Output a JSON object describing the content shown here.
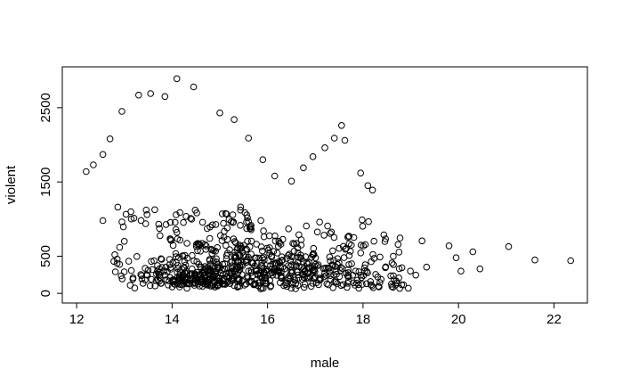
{
  "chart_data": {
    "type": "scatter",
    "title": "",
    "xlabel": "male",
    "ylabel": "violent",
    "xlim": [
      11.7,
      22.7
    ],
    "ylim": [
      -130,
      3050
    ],
    "x_ticks": [
      12,
      14,
      16,
      18,
      20,
      22
    ],
    "y_ticks": [
      0,
      500,
      1500,
      2500
    ],
    "grid": false,
    "legend": false,
    "marker": "open-circle",
    "marker_color": "#000000",
    "background_color": "#ffffff",
    "seed": 20,
    "explicit_points": [
      [
        12.2,
        1640
      ],
      [
        12.35,
        1730
      ],
      [
        12.55,
        1870
      ],
      [
        12.7,
        2080
      ],
      [
        12.95,
        2450
      ],
      [
        13.3,
        2670
      ],
      [
        13.55,
        2690
      ],
      [
        13.85,
        2650
      ],
      [
        14.1,
        2890
      ],
      [
        14.45,
        2780
      ],
      [
        15.0,
        2430
      ],
      [
        15.3,
        2340
      ],
      [
        15.6,
        2090
      ],
      [
        15.9,
        1800
      ],
      [
        16.15,
        1580
      ],
      [
        16.5,
        1510
      ],
      [
        16.75,
        1690
      ],
      [
        16.95,
        1840
      ],
      [
        17.2,
        1960
      ],
      [
        17.4,
        2090
      ],
      [
        17.55,
        2260
      ],
      [
        17.62,
        2060
      ],
      [
        17.95,
        1620
      ],
      [
        18.1,
        1450
      ],
      [
        18.2,
        1390
      ],
      [
        12.78,
        430
      ],
      [
        12.8,
        520
      ],
      [
        12.85,
        460
      ],
      [
        12.9,
        620
      ],
      [
        13.0,
        700
      ],
      [
        12.55,
        980
      ],
      [
        19.8,
        640
      ],
      [
        19.95,
        480
      ],
      [
        20.05,
        300
      ],
      [
        20.3,
        560
      ],
      [
        20.45,
        330
      ],
      [
        21.05,
        630
      ],
      [
        21.6,
        450
      ],
      [
        22.35,
        440
      ]
    ],
    "point_clusters": [
      {
        "name": "core-low",
        "n": 300,
        "x": {
          "dist": "normal",
          "mean": 15.6,
          "sd": 1.45,
          "min": 12.8,
          "max": 19.5
        },
        "y": {
          "dist": "normal",
          "mean": 280,
          "sd": 130,
          "min": 60,
          "max": 650
        }
      },
      {
        "name": "core-mid",
        "n": 220,
        "x": {
          "dist": "normal",
          "mean": 15.9,
          "sd": 1.5,
          "min": 12.9,
          "max": 19.6
        },
        "y": {
          "dist": "normal",
          "mean": 480,
          "sd": 180,
          "min": 150,
          "max": 900
        }
      },
      {
        "name": "left-bottom-dense",
        "n": 90,
        "x": {
          "dist": "normal",
          "mean": 14.4,
          "sd": 0.6,
          "min": 13.3,
          "max": 15.6
        },
        "y": {
          "dist": "normal",
          "mean": 190,
          "sd": 70,
          "min": 80,
          "max": 380
        }
      },
      {
        "name": "upper-scatter",
        "n": 45,
        "x": {
          "dist": "uniform",
          "min": 13.8,
          "max": 18.8
        },
        "y": {
          "dist": "uniform",
          "min": 620,
          "max": 1000
        }
      },
      {
        "name": "upper-band-left",
        "n": 40,
        "x": {
          "dist": "uniform",
          "min": 12.85,
          "max": 15.7
        },
        "y": {
          "dist": "normal",
          "mean": 1020,
          "sd": 90,
          "min": 870,
          "max": 1170
        }
      },
      {
        "name": "bottom-strip",
        "n": 60,
        "x": {
          "dist": "uniform",
          "min": 13.4,
          "max": 18.9
        },
        "y": {
          "dist": "normal",
          "mean": 115,
          "sd": 40,
          "min": 60,
          "max": 210
        }
      }
    ]
  }
}
